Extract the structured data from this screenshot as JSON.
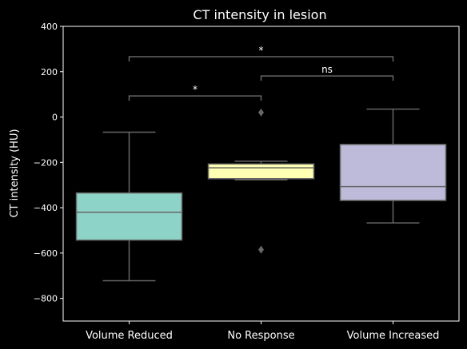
{
  "chart_data": {
    "type": "box",
    "title": "CT intensity in lesion",
    "xlabel": "",
    "ylabel": "CT intensity (HU)",
    "ylim": [
      -900,
      400
    ],
    "yticks": [
      400,
      200,
      0,
      -200,
      -400,
      -600,
      -800
    ],
    "ytick_labels": [
      "400",
      "200",
      "0",
      "−200",
      "−400",
      "−600",
      "−800"
    ],
    "grid": false,
    "categories": [
      "Volume Reduced",
      "No Response",
      "Volume Increased"
    ],
    "boxes": [
      {
        "category": "Volume Reduced",
        "whisker_low": -722,
        "q1": -543,
        "median": -420,
        "q3": -335,
        "whisker_high": -67,
        "outliers": [],
        "color": "#8dd3c7"
      },
      {
        "category": "No Response",
        "whisker_low": -277,
        "q1": -272,
        "median": -224,
        "q3": -207,
        "whisker_high": -195,
        "outliers": [
          20,
          -585
        ],
        "color": "#ffffb3"
      },
      {
        "category": "Volume Increased",
        "whisker_low": -467,
        "q1": -368,
        "median": -307,
        "q3": -121,
        "whisker_high": 35,
        "outliers": [],
        "color": "#bebada"
      }
    ],
    "annotations": [
      {
        "from": "Volume Reduced",
        "to": "No Response",
        "label": "*",
        "y": 93
      },
      {
        "from": "No Response",
        "to": "Volume Increased",
        "label": "ns",
        "y": 181
      },
      {
        "from": "Volume Reduced",
        "to": "Volume Increased",
        "label": "*",
        "y": 266
      }
    ],
    "colors": {
      "background": "#000000",
      "axis": "#ffffff",
      "box_edge": "#666666",
      "bracket": "#666666",
      "text": "#ffffff"
    }
  }
}
